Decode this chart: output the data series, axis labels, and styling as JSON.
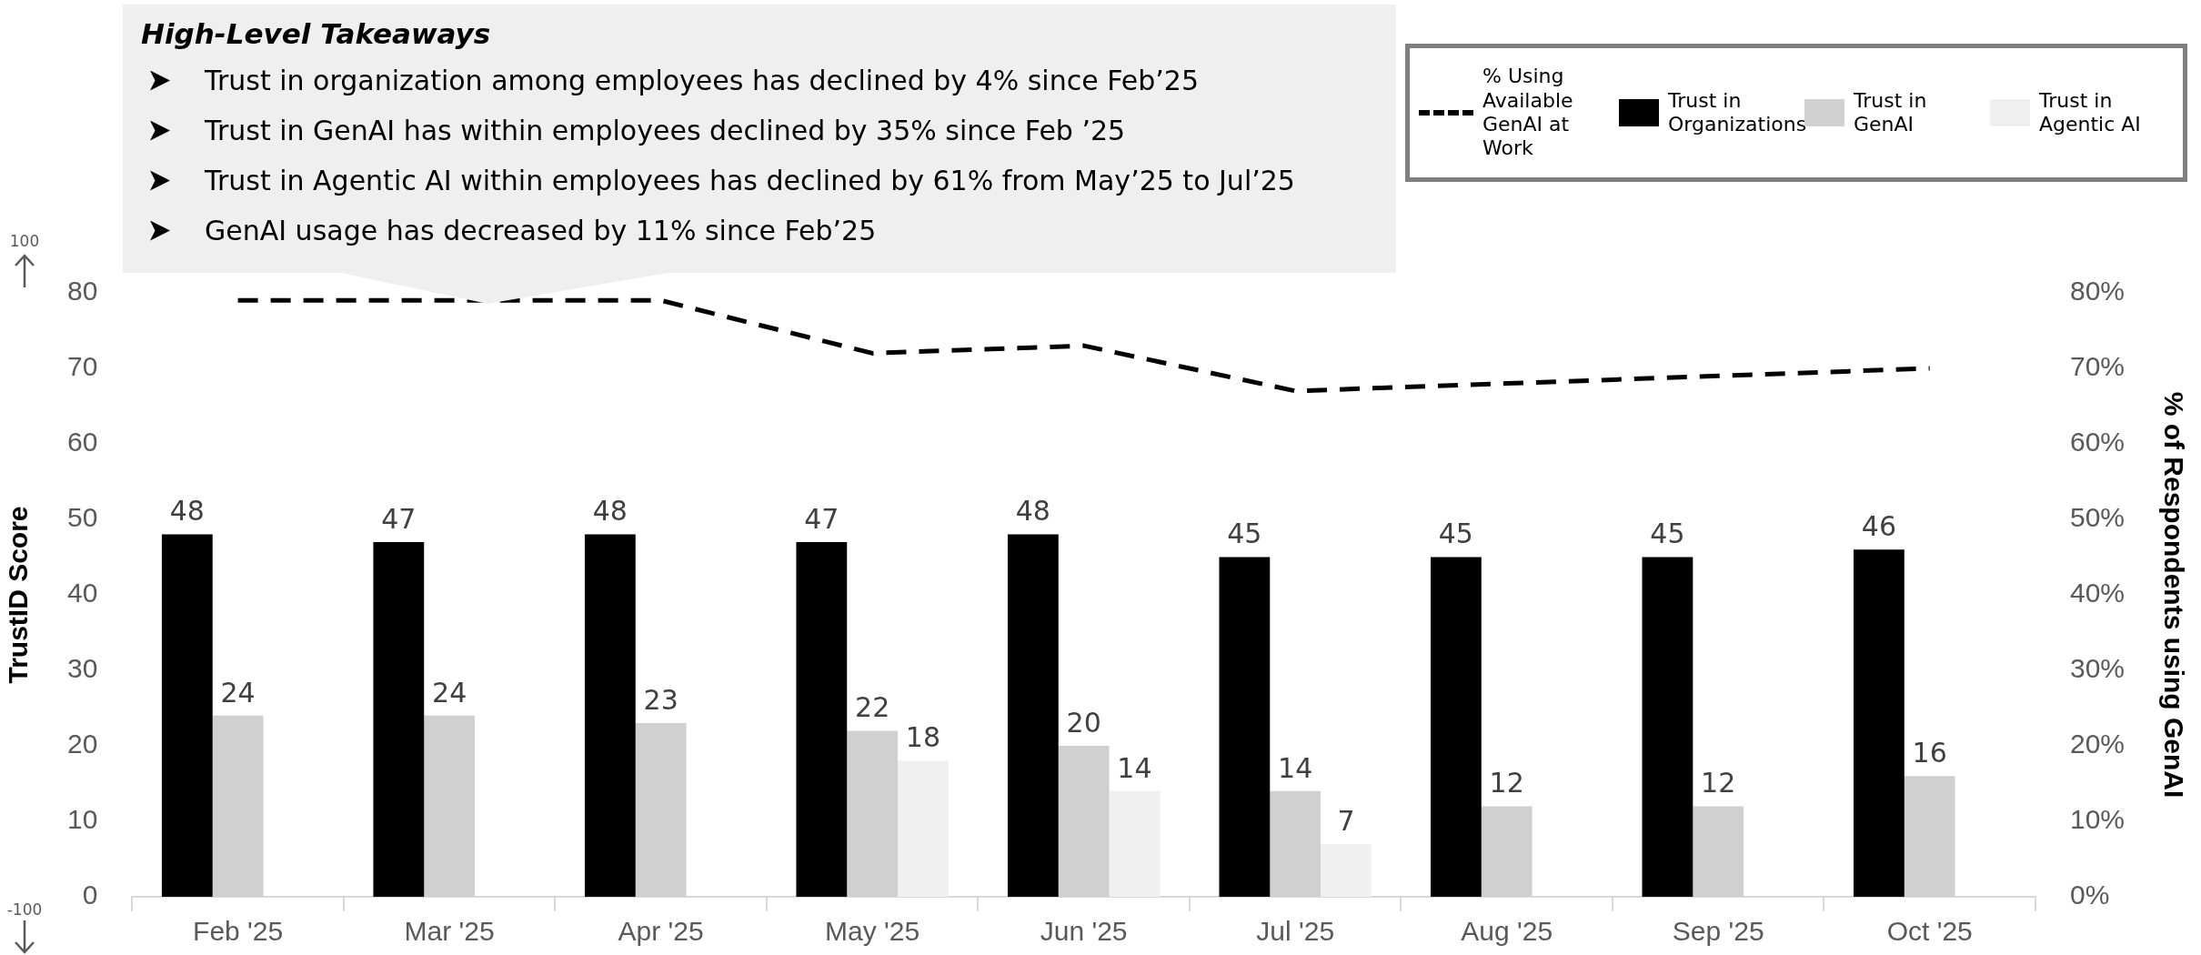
{
  "chart_data": {
    "type": "bar",
    "title": "High-Level Takeaways",
    "categories": [
      "Feb '25",
      "Mar '25",
      "Apr '25",
      "May '25",
      "Jun '25",
      "Jul '25",
      "Aug '25",
      "Sep '25",
      "Oct '25"
    ],
    "series": [
      {
        "name": "% Using Available GenAI at Work",
        "type": "line",
        "axis": "y2",
        "line_style": "dashed",
        "color": "#000000",
        "values": [
          79,
          79,
          79,
          72,
          73,
          67,
          68,
          69,
          70
        ]
      },
      {
        "name": "Trust in Organizations",
        "color": "#000000",
        "values": [
          48,
          47,
          48,
          47,
          48,
          45,
          45,
          45,
          46
        ],
        "value_labels": [
          "48",
          "47",
          "48",
          "47",
          "48",
          "45",
          "45",
          "45",
          "46"
        ]
      },
      {
        "name": "Trust in GenAI",
        "color": "#d0d0d0",
        "values": [
          24,
          24,
          23,
          22,
          20,
          14,
          12,
          12,
          16
        ],
        "value_labels": [
          "24",
          "24",
          "23",
          "22",
          "20",
          "14",
          "12",
          "12",
          "16"
        ]
      },
      {
        "name": "Trust in Agentic AI",
        "color": "#f0f0f0",
        "values": [
          null,
          null,
          null,
          18,
          14,
          7,
          null,
          null,
          null
        ],
        "value_labels": [
          null,
          null,
          null,
          "18",
          "14",
          "7",
          null,
          null,
          null
        ]
      }
    ],
    "ylabel": "TrustID Score",
    "y2label": "% of Respondents using GenAI",
    "ylim": [
      0,
      80
    ],
    "yticks": [
      0,
      10,
      20,
      30,
      40,
      50,
      60,
      70,
      80
    ],
    "y2lim": [
      0,
      80
    ],
    "y2ticks": [
      {
        "value": 0,
        "label": "0%"
      },
      {
        "value": 10,
        "label": "10%"
      },
      {
        "value": 20,
        "label": "20%"
      },
      {
        "value": 30,
        "label": "30%"
      },
      {
        "value": 40,
        "label": "40%"
      },
      {
        "value": 50,
        "label": "50%"
      },
      {
        "value": 60,
        "label": "60%"
      },
      {
        "value": 70,
        "label": "70%"
      },
      {
        "value": 80,
        "label": "80%"
      }
    ],
    "annotations": [
      "Trust in organization among employees has declined by 4% since Feb’25",
      "Trust in GenAI has within employees declined by 35% since Feb ’25",
      "Trust in Agentic AI within employees has declined by 61% from May’25 to Jul’25",
      "GenAI usage has decreased by 11% since Feb’25",
      "100",
      "-100"
    ],
    "legend": "top right",
    "grid": false,
    "marker": "none"
  }
}
